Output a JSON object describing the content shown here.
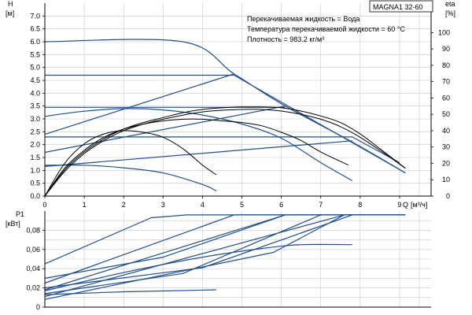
{
  "chart_data": [
    {
      "type": "line",
      "panel": "head-efficiency",
      "title": "MAGNA1 32-60",
      "annotations": [
        "Перекачиваемая жидкость = Вода",
        "Температура перекачиваемой жидкости = 60 °C",
        "Плотность = 983.2 кг/м³"
      ],
      "ylabel": "H",
      "yunit": "[м]",
      "y2label": "eta",
      "y2unit": "[%]",
      "xlabel": "Q",
      "xunit": "[м³/ч]",
      "xlim": [
        0,
        9.8
      ],
      "ylim": [
        0,
        7.5
      ],
      "y2lim": [
        0,
        118
      ],
      "x_ticks": [
        0,
        1,
        2,
        3,
        4,
        5,
        6,
        7,
        8,
        9
      ],
      "y_ticks": [
        0.0,
        0.5,
        1.0,
        1.5,
        2.0,
        2.5,
        3.0,
        3.5,
        4.0,
        4.5,
        5.0,
        5.5,
        6.0,
        6.5,
        7.0
      ],
      "y2_ticks": [
        0,
        10,
        20,
        30,
        40,
        50,
        60,
        70,
        80,
        90,
        100
      ],
      "grid": true,
      "colors": {
        "curve": "#1f4e8c",
        "efficiency": "#000000",
        "grid": "#c8c8c8"
      },
      "series": [
        {
          "kind": "head",
          "x": [
            0,
            3.5,
            4.8,
            6.1,
            7.8,
            9.15
          ],
          "y": [
            6.0,
            6.0,
            4.75,
            3.5,
            2.1,
            0.9
          ]
        },
        {
          "kind": "head",
          "x": [
            0,
            4.8,
            9.15
          ],
          "y": [
            4.7,
            4.7,
            0.9
          ]
        },
        {
          "kind": "head",
          "x": [
            0,
            6.1
          ],
          "y": [
            3.45,
            3.45
          ]
        },
        {
          "kind": "head",
          "x": [
            0,
            7.8,
            9.0
          ],
          "y": [
            2.3,
            2.3,
            1.3
          ]
        },
        {
          "kind": "head",
          "x": [
            0,
            4.8
          ],
          "y": [
            2.4,
            4.75
          ]
        },
        {
          "kind": "head",
          "x": [
            0,
            6.1
          ],
          "y": [
            1.7,
            3.5
          ]
        },
        {
          "kind": "head",
          "x": [
            0,
            7.8
          ],
          "y": [
            1.15,
            2.15
          ]
        },
        {
          "kind": "head",
          "x": [
            0,
            1.0,
            2.0,
            3.0,
            4.0,
            5.0,
            6.0,
            7.0,
            7.8
          ],
          "y": [
            3.1,
            3.3,
            3.4,
            3.35,
            3.15,
            2.8,
            2.25,
            1.3,
            0.6
          ]
        },
        {
          "kind": "head",
          "x": [
            0,
            1.0,
            2.0,
            3.0,
            4.0,
            4.35
          ],
          "y": [
            1.2,
            1.2,
            1.1,
            0.9,
            0.45,
            0.2
          ]
        },
        {
          "kind": "efficiency",
          "x": [
            0,
            0.5,
            1.0,
            1.5,
            2.0,
            2.5,
            3.0,
            3.5,
            4.0,
            4.35
          ],
          "y": [
            0,
            20,
            32,
            38,
            40,
            39,
            36,
            29,
            19,
            13
          ]
        },
        {
          "kind": "efficiency",
          "x": [
            0,
            0.5,
            1.0,
            1.5,
            2.0,
            2.5,
            3.0,
            3.5,
            4.0,
            4.5,
            5.0,
            5.5,
            6.0,
            6.5,
            7.0,
            7.7
          ],
          "y": [
            0,
            17,
            28,
            36,
            41,
            44,
            46,
            47,
            47,
            46,
            45,
            43,
            39,
            34,
            27,
            19
          ]
        },
        {
          "kind": "efficiency",
          "x": [
            0,
            0.5,
            1.0,
            1.5,
            2.0,
            2.5,
            3.0,
            3.5,
            4.0,
            4.5,
            5.0,
            5.5,
            6.0,
            6.5,
            7.0,
            7.5,
            8.0,
            8.5,
            9.15
          ],
          "y": [
            0,
            16,
            27,
            35,
            41,
            45,
            48,
            51,
            53,
            54,
            54.5,
            54.5,
            54,
            52,
            49,
            45,
            38,
            29,
            17
          ]
        },
        {
          "kind": "efficiency",
          "x": [
            0,
            0.5,
            1.0,
            1.5,
            2.0,
            2.5,
            3.0,
            3.5,
            4.0,
            4.5,
            5.0,
            5.5,
            6.0,
            6.5,
            7.0,
            7.5,
            8.0,
            8.5,
            9.15
          ],
          "y": [
            0,
            15,
            26,
            34,
            40,
            44,
            47,
            49.5,
            51.5,
            52.5,
            53,
            53,
            52,
            50,
            47,
            42.5,
            36,
            28,
            17
          ]
        }
      ]
    },
    {
      "type": "line",
      "panel": "power",
      "ylabel": "P1",
      "yunit": "[кВт]",
      "xlim": [
        0,
        9.8
      ],
      "ylim": [
        0,
        0.1
      ],
      "y_ticks": [
        0,
        0.02,
        0.04,
        0.06,
        0.08
      ],
      "y_tick_labels": [
        "0",
        "0,02",
        "0,04",
        "0,06",
        "0,08"
      ],
      "grid": true,
      "colors": {
        "curve": "#1f4e8c",
        "grid": "#c8c8c8"
      },
      "series": [
        {
          "x": [
            0,
            2.7,
            3.6,
            9.15
          ],
          "y": [
            0.045,
            0.093,
            0.096,
            0.096
          ]
        },
        {
          "x": [
            0,
            4.8,
            9.15
          ],
          "y": [
            0.025,
            0.096,
            0.096
          ]
        },
        {
          "x": [
            0,
            6.1,
            9.15
          ],
          "y": [
            0.018,
            0.096,
            0.096
          ]
        },
        {
          "x": [
            0,
            7.6,
            9.15
          ],
          "y": [
            0.011,
            0.096,
            0.096
          ]
        },
        {
          "x": [
            0,
            3.0,
            6.1
          ],
          "y": [
            0.03,
            0.052,
            0.096
          ]
        },
        {
          "x": [
            0,
            5.8,
            7.6
          ],
          "y": [
            0.008,
            0.057,
            0.096
          ]
        },
        {
          "x": [
            0,
            2.0,
            4.0,
            5.5,
            6.5,
            7.8
          ],
          "y": [
            0.017,
            0.036,
            0.052,
            0.061,
            0.065,
            0.065
          ]
        },
        {
          "x": [
            0,
            2.0,
            4.35
          ],
          "y": [
            0.013,
            0.016,
            0.018
          ]
        },
        {
          "x": [
            0,
            4.0,
            7.8
          ],
          "y": [
            0.02,
            0.041,
            0.096
          ]
        },
        {
          "x": [
            0,
            3.5,
            7.0
          ],
          "y": [
            0.014,
            0.035,
            0.096
          ]
        }
      ]
    }
  ]
}
